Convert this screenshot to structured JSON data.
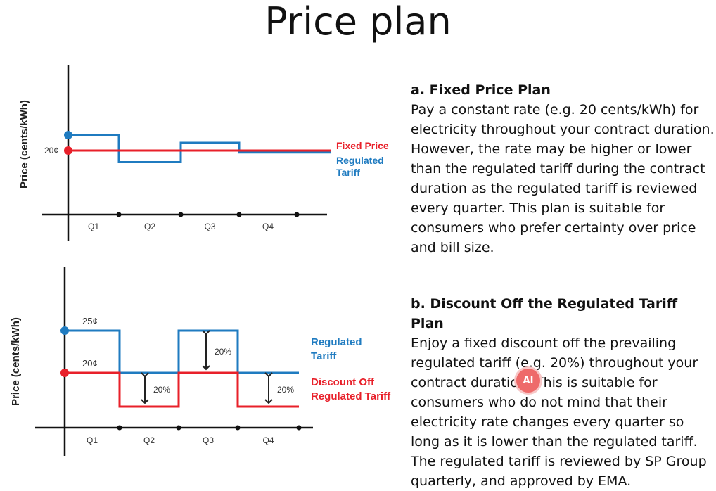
{
  "title": "Price plan",
  "colors": {
    "fixed": "#e8202a",
    "regulated": "#1f7bc0",
    "axis": "#111111"
  },
  "section_a": {
    "heading": "a. Fixed Price Plan",
    "body": "Pay a constant rate (e.g. 20 cents/kWh) for electricity throughout your contract duration. However, the rate may be higher or lower than the regulated tariff during the contract duration as the regulated tariff is reviewed every quarter. This plan is suitable for consumers who prefer certainty over price and bill size."
  },
  "section_b": {
    "heading": "b. Discount Off the Regulated Tariff Plan",
    "body_before": "Enjoy a fixed discount off the prevailing regulated tariff (e.g. 20%) throughout your contract duration. This is suitable for consumers who do not mind that their electricity rate changes every quarter so long as it is lower than the regulated tariff. The regulated tariff is reviewed by SP Group quarterly, and approved by EMA."
  },
  "badge": "AI",
  "chart_data": [
    {
      "type": "line",
      "ylabel": "Price (cents/kWh)",
      "categories": [
        "Q1",
        "Q2",
        "Q3",
        "Q4"
      ],
      "y_tick_label": "20¢",
      "series": [
        {
          "name": "Fixed Price",
          "values": [
            20,
            20,
            20,
            20
          ]
        },
        {
          "name": "Regulated Tariff",
          "values": [
            24,
            17,
            22,
            19.5
          ]
        }
      ],
      "legend_lines": {
        "fixed": [
          "Fixed Price"
        ],
        "regulated": [
          "Regulated",
          "Tariff"
        ]
      }
    },
    {
      "type": "line",
      "ylabel": "Price (cents/kWh)",
      "categories": [
        "Q1",
        "Q2",
        "Q3",
        "Q4"
      ],
      "y_tick_labels": [
        "25¢",
        "20¢"
      ],
      "series": [
        {
          "name": "Regulated Tariff",
          "values": [
            25,
            20,
            25,
            20
          ]
        },
        {
          "name": "Discount Off Regulated Tariff",
          "values": [
            20,
            16,
            20,
            16
          ]
        }
      ],
      "annotations": [
        "20%",
        "20%",
        "20%"
      ],
      "legend_lines": {
        "regulated": [
          "Regulated",
          "Tariff"
        ],
        "discount": [
          "Discount Off",
          "Regulated Tariff"
        ]
      }
    }
  ]
}
